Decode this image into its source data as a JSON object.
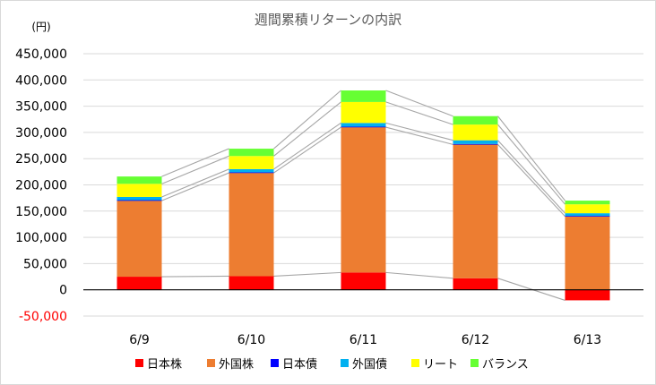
{
  "chart_data": {
    "type": "bar",
    "stacked": true,
    "title": "週間累積リターンの内訳",
    "unit_label": "(円)",
    "categories": [
      "6/9",
      "6/10",
      "6/11",
      "6/12",
      "6/13"
    ],
    "y_ticks": [
      "450,000",
      "400,000",
      "350,000",
      "300,000",
      "250,000",
      "200,000",
      "150,000",
      "100,000",
      "50,000",
      "0",
      "-50,000"
    ],
    "ylim": [
      -50000,
      450000
    ],
    "grid": true,
    "legend_position": "bottom",
    "series": [
      {
        "name": "日本株",
        "color": "#ff0000",
        "values": [
          25000,
          26000,
          33000,
          22000,
          -20000
        ]
      },
      {
        "name": "外国株",
        "color": "#ed7d31",
        "values": [
          145000,
          197000,
          277000,
          255000,
          140000
        ]
      },
      {
        "name": "日本債",
        "color": "#0000ff",
        "values": [
          1000,
          1000,
          1000,
          1000,
          1000
        ]
      },
      {
        "name": "外国債",
        "color": "#00b0f0",
        "values": [
          6000,
          6000,
          7000,
          7000,
          5000
        ]
      },
      {
        "name": "リート",
        "color": "#ffff00",
        "values": [
          25000,
          25000,
          40000,
          30000,
          17000
        ]
      },
      {
        "name": "バランス",
        "color": "#66ff33",
        "values": [
          14000,
          14000,
          22000,
          16000,
          7000
        ]
      }
    ],
    "negative_tick_color": "#ff0000",
    "connector_color": "#a6a6a6",
    "axis_color": "#000000",
    "grid_color": "#d9d9d9"
  }
}
